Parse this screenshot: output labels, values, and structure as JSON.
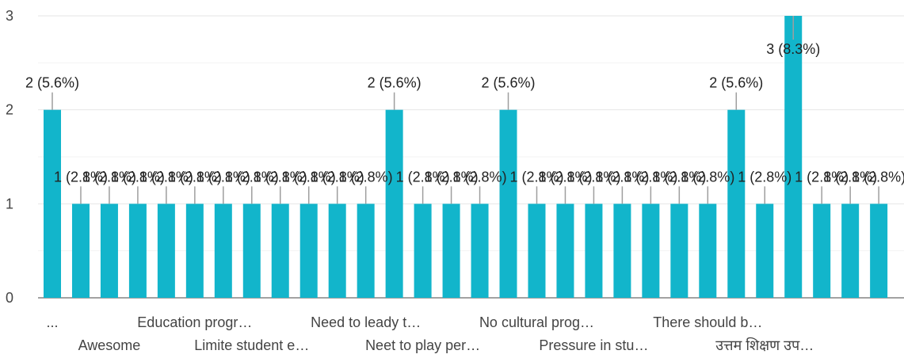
{
  "chart_data": {
    "type": "bar",
    "title": "",
    "xlabel": "",
    "ylabel": "",
    "ylim": [
      0,
      3
    ],
    "y_ticks": [
      "0",
      "1",
      "2",
      "3"
    ],
    "grid": true,
    "bar_color": "#12b5cb",
    "grid_color": "#e6e6e6",
    "text_color": "#444444",
    "values": [
      2,
      1,
      1,
      1,
      1,
      1,
      1,
      1,
      1,
      1,
      1,
      1,
      2,
      1,
      1,
      1,
      2,
      1,
      1,
      1,
      1,
      1,
      1,
      1,
      2,
      1,
      3,
      1,
      1,
      1
    ],
    "data_labels": [
      "2 (5.6%)",
      "1 (2.8%)",
      "1 (2.8%)",
      "1 (2.8%)",
      "1 (2.8%)",
      "1 (2.8%)",
      "1 (2.8%)",
      "1 (2.8%)",
      "1 (2.8%)",
      "1 (2.8%)",
      "1 (2.8%)",
      "1 (2.8%)",
      "2 (5.6%)",
      "1 (2.8%)",
      "1 (2.8%)",
      "1 (2.8%)",
      "2 (5.6%)",
      "1 (2.8%)",
      "1 (2.8%)",
      "1 (2.8%)",
      "1 (2.8%)",
      "1 (2.8%)",
      "1 (2.8%)",
      "1 (2.8%)",
      "2 (5.6%)",
      "1 (2.8%)",
      "3 (8.3%)",
      "1 (2.8%)",
      "1 (2.8%)",
      "1 (2.8%)"
    ],
    "x_labels": [
      {
        "bar_index": 0,
        "row": 1,
        "text": "..."
      },
      {
        "bar_index": 2,
        "row": 2,
        "text": "Awesome"
      },
      {
        "bar_index": 5,
        "row": 1,
        "text": "Education progr…"
      },
      {
        "bar_index": 7,
        "row": 2,
        "text": "Limite student e…"
      },
      {
        "bar_index": 11,
        "row": 1,
        "text": "Need to leady t…"
      },
      {
        "bar_index": 13,
        "row": 2,
        "text": "Neet to play per…"
      },
      {
        "bar_index": 17,
        "row": 1,
        "text": "No cultural prog…"
      },
      {
        "bar_index": 19,
        "row": 2,
        "text": "Pressure in stu…"
      },
      {
        "bar_index": 23,
        "row": 1,
        "text": "There should b…"
      },
      {
        "bar_index": 25,
        "row": 2,
        "text": "उत्तम शिक्षण उप…"
      }
    ]
  }
}
